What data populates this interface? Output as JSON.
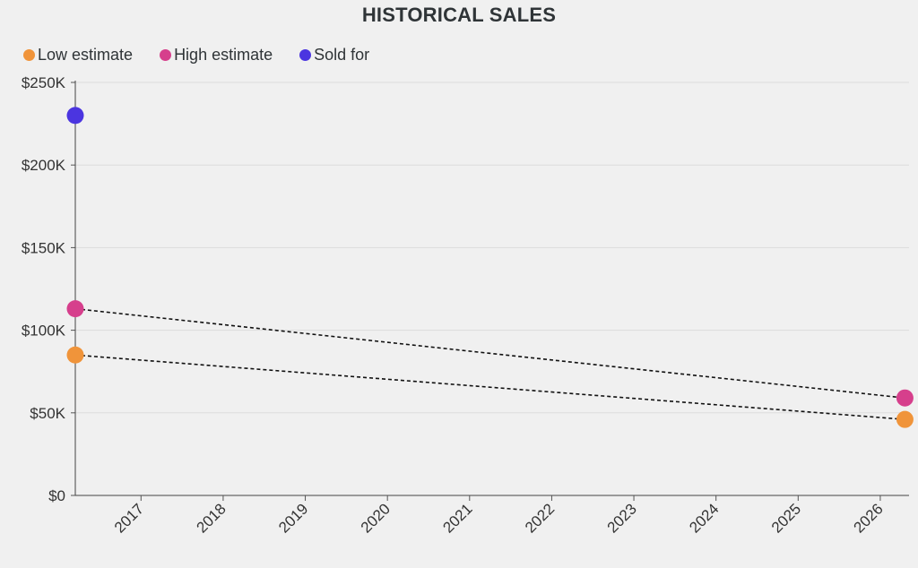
{
  "chart_data": {
    "type": "scatter",
    "title": "HISTORICAL SALES",
    "xlabel": "",
    "ylabel": "",
    "x_ticks": [
      "2017",
      "2018",
      "2019",
      "2020",
      "2021",
      "2022",
      "2023",
      "2024",
      "2025",
      "2026"
    ],
    "xlim": [
      2016.2,
      2026.35
    ],
    "ylim": [
      0,
      250000
    ],
    "y_ticks": [
      {
        "value": 0,
        "label": "$0"
      },
      {
        "value": 50000,
        "label": "$50K"
      },
      {
        "value": 100000,
        "label": "$100K"
      },
      {
        "value": 150000,
        "label": "$150K"
      },
      {
        "value": 200000,
        "label": "$200K"
      },
      {
        "value": 250000,
        "label": "$250K"
      }
    ],
    "grid": true,
    "legend_position": "top-left",
    "series": [
      {
        "name": "Low estimate",
        "color": "#f0943a",
        "points": [
          {
            "x": 2016.2,
            "y": 85000
          },
          {
            "x": 2026.3,
            "y": 46000
          }
        ],
        "connector": "dotted"
      },
      {
        "name": "High estimate",
        "color": "#d63f8c",
        "points": [
          {
            "x": 2016.2,
            "y": 113000
          },
          {
            "x": 2026.3,
            "y": 59000
          }
        ],
        "connector": "dotted"
      },
      {
        "name": "Sold for",
        "color": "#4b35e0",
        "points": [
          {
            "x": 2016.2,
            "y": 230000
          }
        ],
        "connector": "none"
      }
    ]
  }
}
